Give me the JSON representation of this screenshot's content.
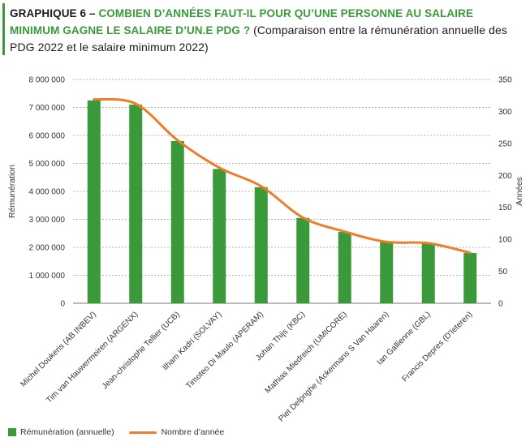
{
  "header": {
    "label": "GRAPHIQUE 6",
    "dash": " – ",
    "title": "COMBIEN D’ANNÉES FAUT-IL POUR QU’UNE PERSONNE AU SALAIRE MINIMUM GAGNE LE SALAIRE D’UN.E PDG ?",
    "subtitle": "(Comparaison entre la rémunération annuelle des PDG 2022 et le salaire minimum 2022)"
  },
  "colors": {
    "accent": "#3a9a3a",
    "bar": "#3a9a3a",
    "line": "#ee7d2a",
    "grid": "#9a9a9a"
  },
  "chart_data": {
    "type": "bar",
    "categories": [
      "Michel Doukeris (AB INBEV)",
      "Tim van Hauwermeiren (ARGENX)",
      "Jean-christophe Tellier (UCB)",
      "Ilham Kadri (SOLVAY)",
      "Timoteo Di Maulo (APERAM)",
      "Johan Thijs (KBC)",
      "Mathias Miedreich (UMICORE)",
      "Piet Delpnghe (Ackermans S Van Haaren)",
      "Ian Gallienne (GBL)",
      "Francis Depres (D'Ieteren)"
    ],
    "series": [
      {
        "name": "Rémunération (annuelle)",
        "type": "bar",
        "axis": "left",
        "values": [
          7250000,
          7100000,
          5800000,
          4800000,
          4150000,
          3050000,
          2550000,
          2200000,
          2150000,
          1800000
        ]
      },
      {
        "name": "Nombre d’année",
        "type": "line",
        "axis": "right",
        "values": [
          319,
          312,
          255,
          212,
          183,
          134,
          112,
          96,
          94,
          79
        ]
      }
    ],
    "ylabel": "Rémunération",
    "y2label": "Années",
    "ylim": [
      0,
      8000000
    ],
    "y2lim": [
      0,
      350
    ],
    "yticks": [
      "0",
      "1 000 000",
      "2 000 000",
      "3 000 000",
      "4 000 000",
      "5 000 000",
      "6 000 000",
      "7 000 000",
      "8 000 000"
    ],
    "y2ticks": [
      "0",
      "50",
      "100",
      "150",
      "200",
      "250",
      "300",
      "350"
    ],
    "grid": true,
    "legend_position": "bottom-left"
  }
}
